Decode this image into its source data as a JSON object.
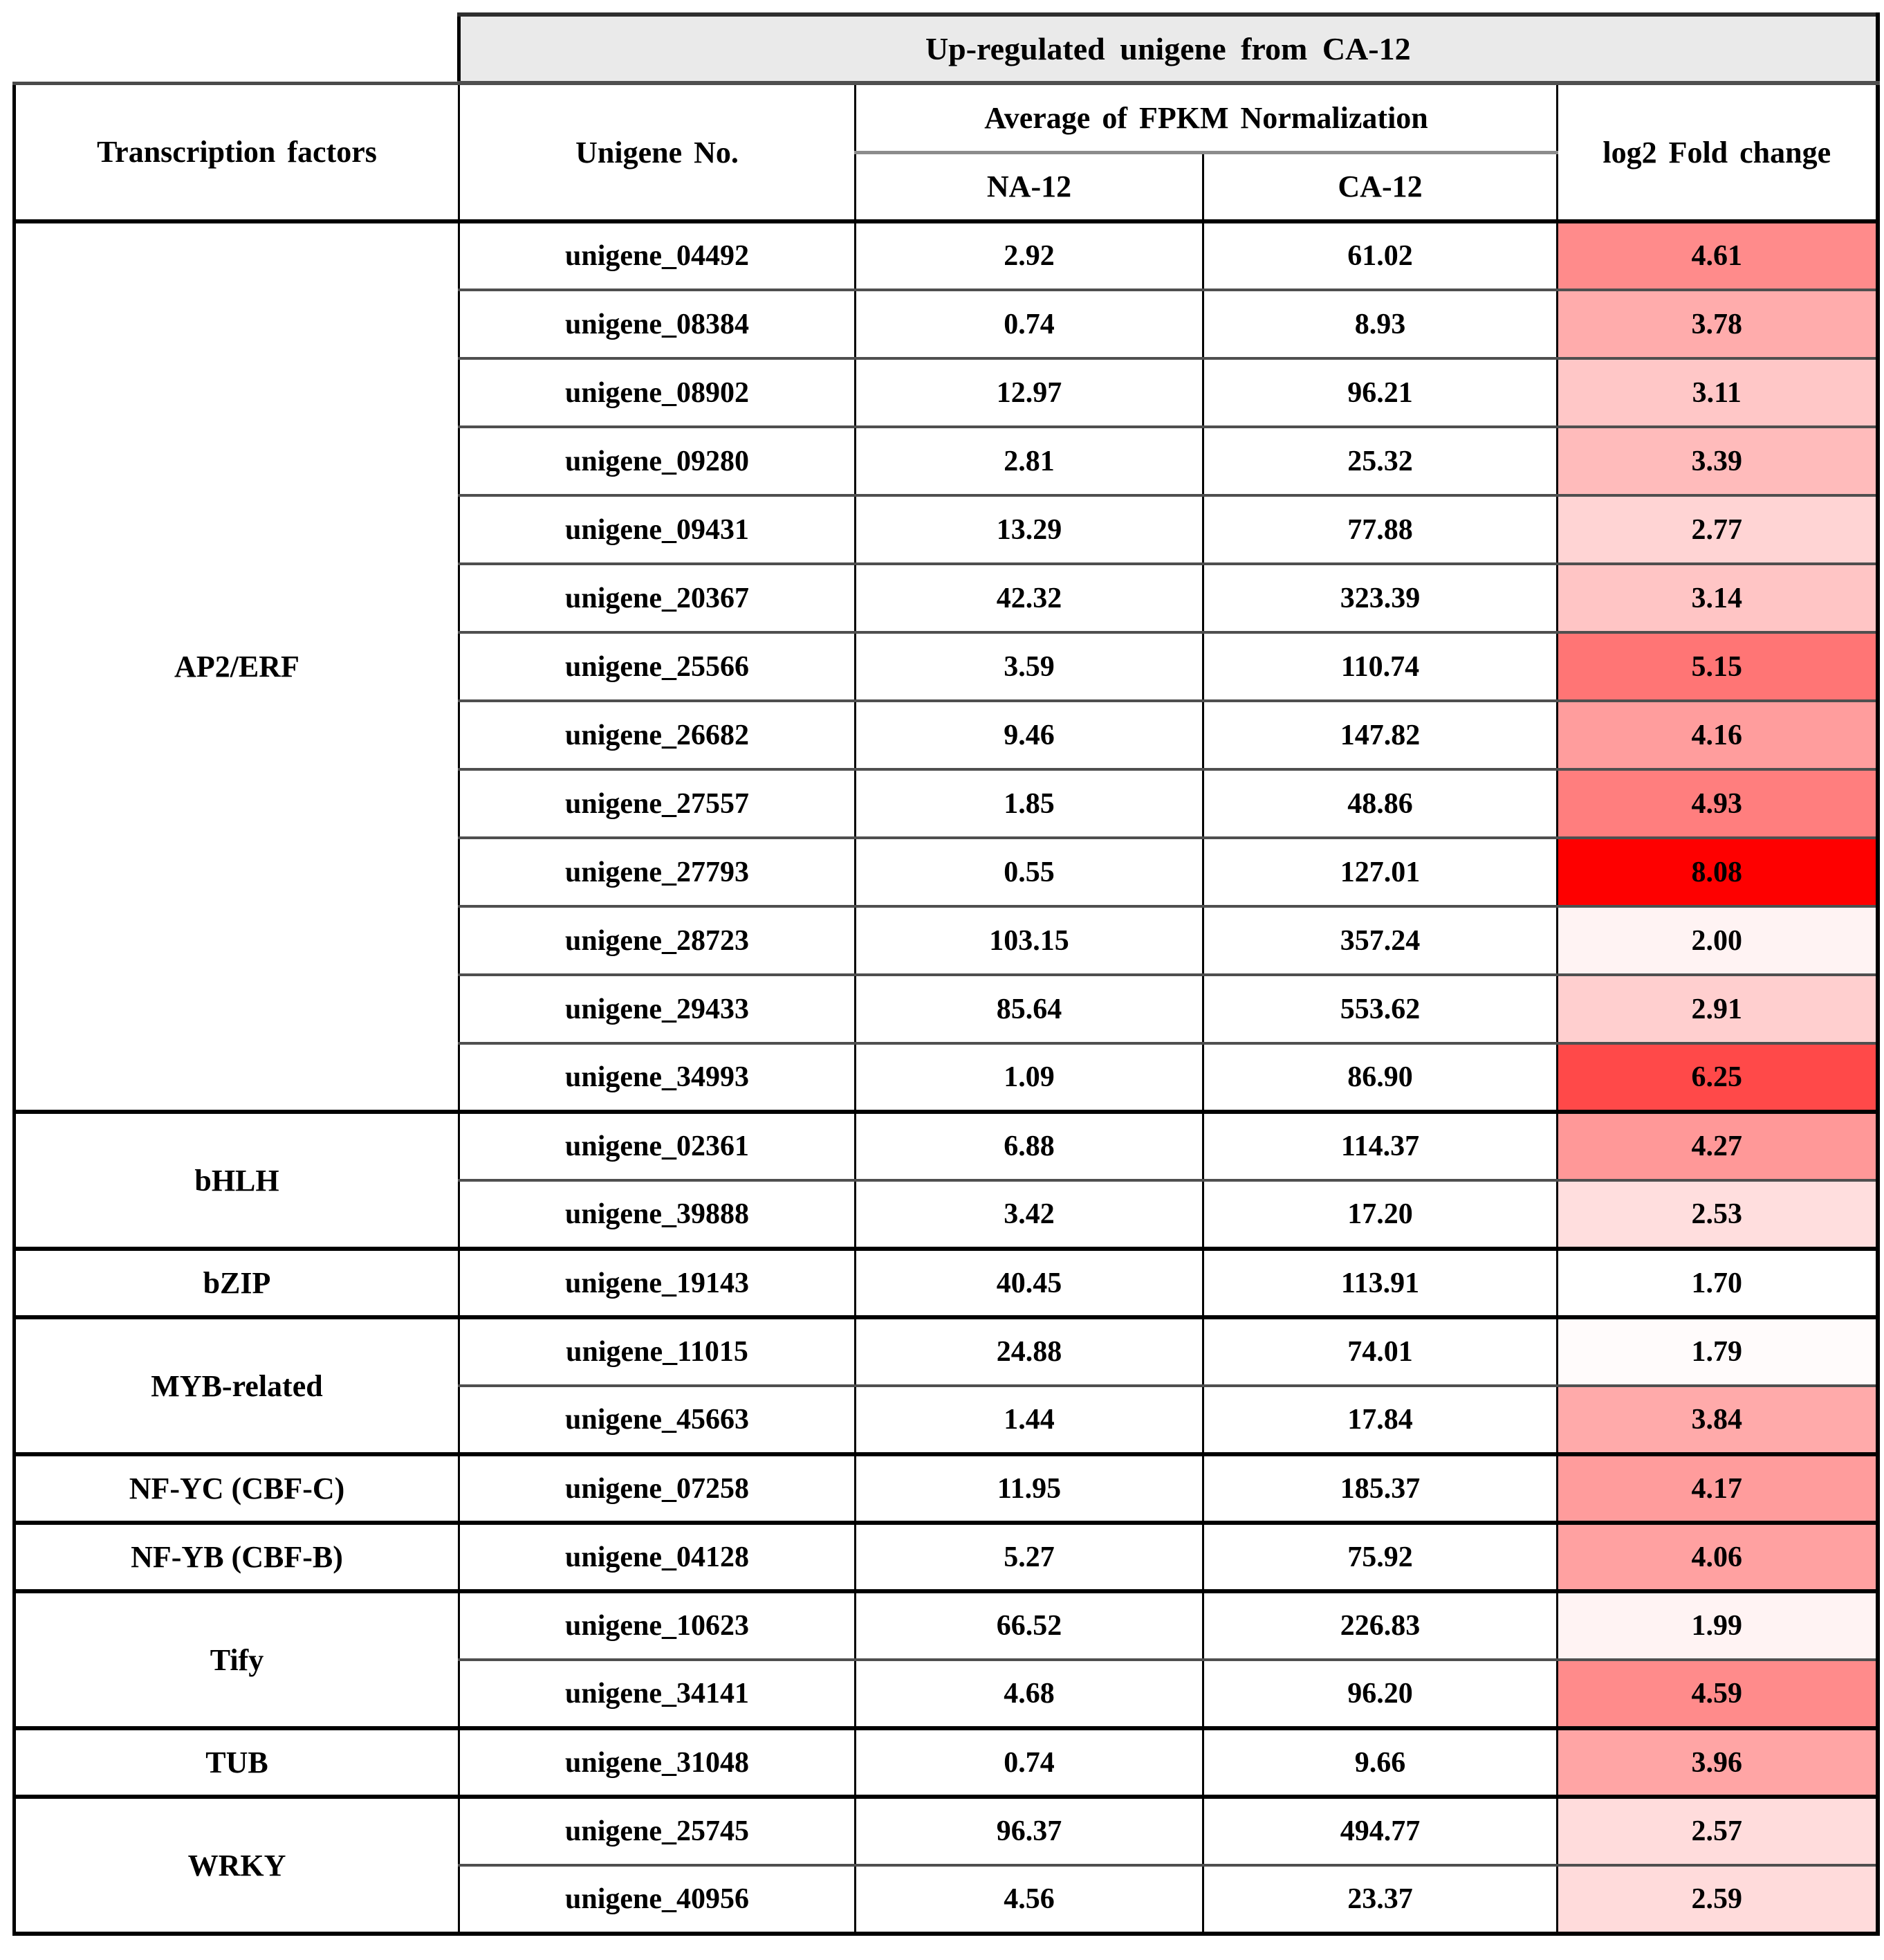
{
  "banner": {
    "title": "Up-regulated unigene from CA-12"
  },
  "headers": {
    "transcription_factors": "Transcription factors",
    "unigene_no": "Unigene No.",
    "fpkm_avg": "Average of FPKM Normalization",
    "na12": "NA-12",
    "ca12": "CA-12",
    "log2_fold": "log2 Fold change"
  },
  "colors": {
    "banner_bg": "#EAEAEA",
    "fold_min_bg": "#FFFFFF",
    "fold_max_bg": "#FE0000",
    "border_black": "#000000"
  },
  "chart_data": {
    "type": "table",
    "title": "Up-regulated unigene from CA-12",
    "columns": [
      "Transcription factors",
      "Unigene No.",
      "NA-12",
      "CA-12",
      "log2 Fold change"
    ]
  },
  "groups": [
    {
      "tf": "AP2/ERF",
      "rows": [
        {
          "unigene": "unigene_04492",
          "na": "2.92",
          "ca": "61.02",
          "fold": "4.61",
          "fold_bg": "#FF8B8B"
        },
        {
          "unigene": "unigene_08384",
          "na": "0.74",
          "ca": "8.93",
          "fold": "3.78",
          "fold_bg": "#FFACAC"
        },
        {
          "unigene": "unigene_08902",
          "na": "12.97",
          "ca": "96.21",
          "fold": "3.11",
          "fold_bg": "#FFC7C7"
        },
        {
          "unigene": "unigene_09280",
          "na": "2.81",
          "ca": "25.32",
          "fold": "3.39",
          "fold_bg": "#FFBBBB"
        },
        {
          "unigene": "unigene_09431",
          "na": "13.29",
          "ca": "77.88",
          "fold": "2.77",
          "fold_bg": "#FFD4D4"
        },
        {
          "unigene": "unigene_20367",
          "na": "42.32",
          "ca": "323.39",
          "fold": "3.14",
          "fold_bg": "#FFC5C5"
        },
        {
          "unigene": "unigene_25566",
          "na": "3.59",
          "ca": "110.74",
          "fold": "5.15",
          "fold_bg": "#FF7575"
        },
        {
          "unigene": "unigene_26682",
          "na": "9.46",
          "ca": "147.82",
          "fold": "4.16",
          "fold_bg": "#FF9D9D"
        },
        {
          "unigene": "unigene_27557",
          "na": "1.85",
          "ca": "48.86",
          "fold": "4.93",
          "fold_bg": "#FF7E7E"
        },
        {
          "unigene": "unigene_27793",
          "na": "0.55",
          "ca": "127.01",
          "fold": "8.08",
          "fold_bg": "#FE0000"
        },
        {
          "unigene": "unigene_28723",
          "na": "103.15",
          "ca": "357.24",
          "fold": "2.00",
          "fold_bg": "#FFF3F3"
        },
        {
          "unigene": "unigene_29433",
          "na": "85.64",
          "ca": "553.62",
          "fold": "2.91",
          "fold_bg": "#FFCFCF"
        },
        {
          "unigene": "unigene_34993",
          "na": "1.09",
          "ca": "86.90",
          "fold": "6.25",
          "fold_bg": "#FF4949"
        }
      ]
    },
    {
      "tf": "bHLH",
      "rows": [
        {
          "unigene": "unigene_02361",
          "na": "6.88",
          "ca": "114.37",
          "fold": "4.27",
          "fold_bg": "#FF9898"
        },
        {
          "unigene": "unigene_39888",
          "na": "3.42",
          "ca": "17.20",
          "fold": "2.53",
          "fold_bg": "#FFDEDE"
        }
      ]
    },
    {
      "tf": "bZIP",
      "rows": [
        {
          "unigene": "unigene_19143",
          "na": "40.45",
          "ca": "113.91",
          "fold": "1.70",
          "fold_bg": "#FFFFFF"
        }
      ]
    },
    {
      "tf": "MYB-related",
      "rows": [
        {
          "unigene": "unigene_11015",
          "na": "24.88",
          "ca": "74.01",
          "fold": "1.79",
          "fold_bg": "#FFFBFB"
        },
        {
          "unigene": "unigene_45663",
          "na": "1.44",
          "ca": "17.84",
          "fold": "3.84",
          "fold_bg": "#FFAAAA"
        }
      ]
    },
    {
      "tf": "NF-YC (CBF-C)",
      "rows": [
        {
          "unigene": "unigene_07258",
          "na": "11.95",
          "ca": "185.37",
          "fold": "4.17",
          "fold_bg": "#FF9C9C"
        }
      ]
    },
    {
      "tf": "NF-YB (CBF-B)",
      "rows": [
        {
          "unigene": "unigene_04128",
          "na": "5.27",
          "ca": "75.92",
          "fold": "4.06",
          "fold_bg": "#FFA1A1"
        }
      ]
    },
    {
      "tf": "Tify",
      "rows": [
        {
          "unigene": "unigene_10623",
          "na": "66.52",
          "ca": "226.83",
          "fold": "1.99",
          "fold_bg": "#FFF3F3"
        },
        {
          "unigene": "unigene_34141",
          "na": "4.68",
          "ca": "96.20",
          "fold": "4.59",
          "fold_bg": "#FF8B8B"
        }
      ]
    },
    {
      "tf": "TUB",
      "rows": [
        {
          "unigene": "unigene_31048",
          "na": "0.74",
          "ca": "9.66",
          "fold": "3.96",
          "fold_bg": "#FFA5A5"
        }
      ]
    },
    {
      "tf": "WRKY",
      "rows": [
        {
          "unigene": "unigene_25745",
          "na": "96.37",
          "ca": "494.77",
          "fold": "2.57",
          "fold_bg": "#FFDCDC"
        },
        {
          "unigene": "unigene_40956",
          "na": "4.56",
          "ca": "23.37",
          "fold": "2.59",
          "fold_bg": "#FFDBDB"
        }
      ]
    }
  ]
}
